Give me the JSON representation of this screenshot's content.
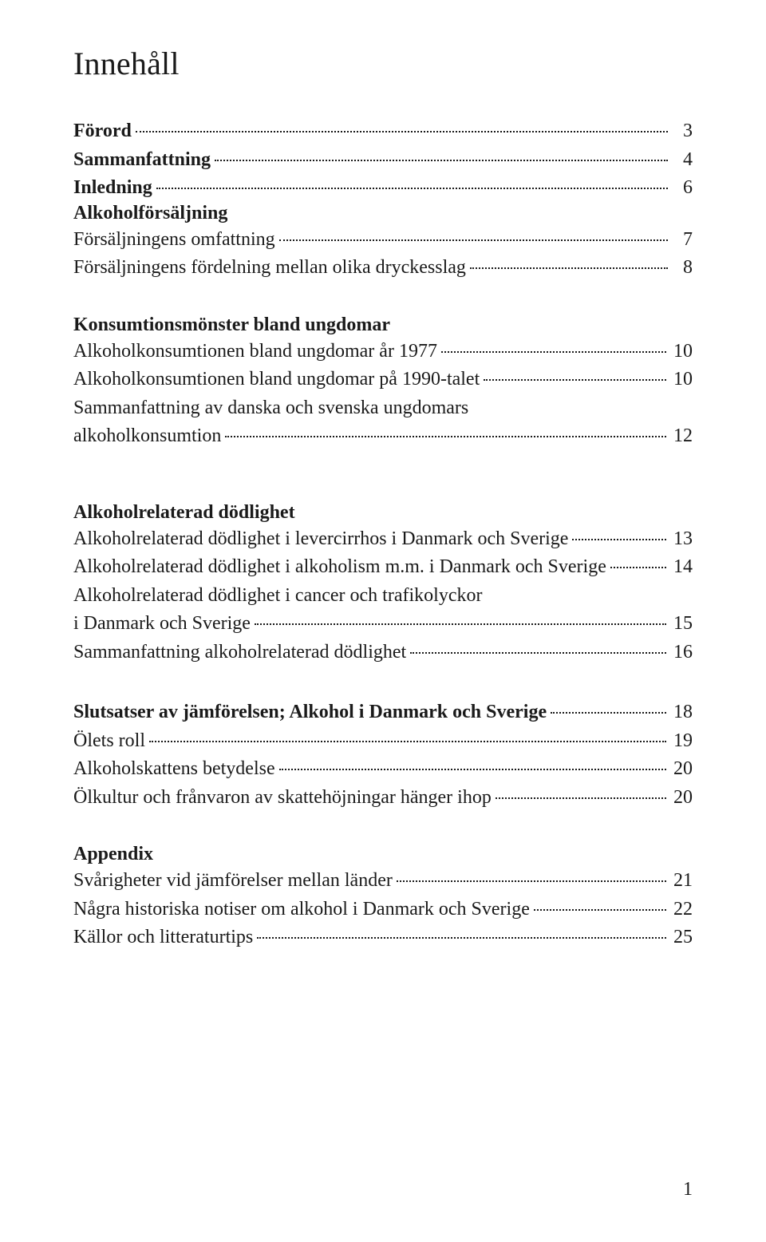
{
  "title": "Innehåll",
  "page_number": "1",
  "sections": [
    {
      "entries": [
        {
          "label": "Förord",
          "page": "3",
          "bold": true
        },
        {
          "label": "Sammanfattning",
          "page": "4",
          "bold": true
        },
        {
          "label": "Inledning",
          "page": "6",
          "bold": true
        },
        {
          "label": "Alkoholförsäljning",
          "page": "",
          "bold": true,
          "noleader": true
        },
        {
          "label": "Försäljningens omfattning",
          "page": "7"
        },
        {
          "label": "Försäljningens fördelning mellan olika dryckesslag",
          "page": "8"
        }
      ],
      "gap_after": "md"
    },
    {
      "heading": "Konsumtionsmönster bland ungdomar",
      "entries": [
        {
          "label": "Alkoholkonsumtionen bland ungdomar år 1977",
          "page": "10"
        },
        {
          "label": "Alkoholkonsumtionen bland ungdomar på 1990-talet",
          "page": "10"
        },
        {
          "wrap": "Sammanfattning av danska och svenska ungdomars",
          "label": "alkoholkonsumtion",
          "page": "12"
        }
      ],
      "gap_after": "lg"
    },
    {
      "heading": "Alkoholrelaterad dödlighet",
      "entries": [
        {
          "label": "Alkoholrelaterad dödlighet i levercirrhos i Danmark och Sverige",
          "page": "13"
        },
        {
          "label": "Alkoholrelaterad dödlighet i alkoholism m.m. i Danmark och Sverige",
          "page": "14"
        },
        {
          "wrap": "Alkoholrelaterad dödlighet i cancer och trafikolyckor",
          "label": "i Danmark och Sverige",
          "page": "15"
        },
        {
          "label": "Sammanfattning alkoholrelaterad dödlighet",
          "page": "16"
        }
      ],
      "gap_after": "md"
    },
    {
      "entries": [
        {
          "label": "Slutsatser av jämförelsen; Alkohol i Danmark och Sverige",
          "page": "18",
          "bold": true
        },
        {
          "label": "Ölets roll",
          "page": "19"
        },
        {
          "label": "Alkoholskattens betydelse",
          "page": "20"
        },
        {
          "label": "Ölkultur och frånvaron av skattehöjningar hänger ihop",
          "page": "20"
        }
      ],
      "gap_after": "md"
    },
    {
      "heading": "Appendix",
      "entries": [
        {
          "label": "Svårigheter vid jämförelser mellan länder",
          "page": "21"
        },
        {
          "label": "Några historiska notiser om alkohol i Danmark och Sverige",
          "page": "22"
        },
        {
          "label": "Källor och litteraturtips",
          "page": "25"
        }
      ]
    }
  ]
}
